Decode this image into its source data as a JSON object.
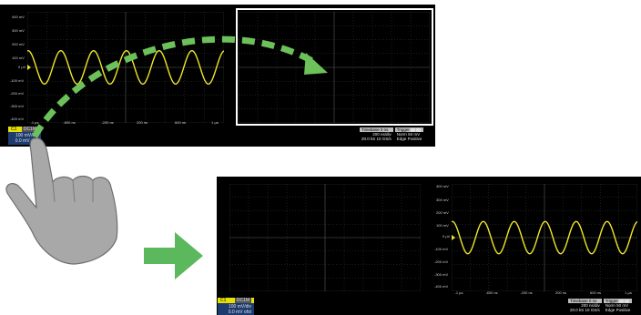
{
  "top_scope": {
    "y_labels": [
      "400 mV",
      "300 mV",
      "200 mV",
      "100 mV",
      "0 µV",
      "-100 mV",
      "-200 mV",
      "-300 mV",
      "-400 mV"
    ],
    "x_labels": [
      "-1 µs",
      "-600 ns",
      "-200 ns",
      "200 ns",
      "600 ns",
      "1 µs"
    ],
    "channel": {
      "name": "C1",
      "badge_box": "DC1M",
      "scale": "100 mV/div",
      "offset": "0.0 mV ofst"
    },
    "timebase": {
      "header": "Timebase",
      "delay": "0 ns",
      "scale": "200 ns/div",
      "samples": "20.0 kS",
      "rate": "10 GS/s"
    },
    "trigger": {
      "header": "Trigger",
      "mode": "Norm",
      "level": "50 mV",
      "type": "Edge",
      "slope": "Positive"
    }
  },
  "bottom_scope": {
    "y_labels": [
      "400 mV",
      "300 mV",
      "200 mV",
      "100 mV",
      "0 µV",
      "-100 mV",
      "-200 mV",
      "-300 mV",
      "-400 mV"
    ],
    "x_labels": [
      "-1 µs",
      "-600 ns",
      "-200 ns",
      "200 ns",
      "600 ns",
      "1 µs"
    ],
    "channel": {
      "name": "C1",
      "badge_box": "DC1M",
      "scale": "100 mV/div",
      "offset": "0.0 mV ofst"
    },
    "timebase": {
      "header": "Timebase",
      "delay": "0 ns",
      "scale": "200 ns/div",
      "samples": "20.0 kS",
      "rate": "10 GS/s"
    },
    "trigger": {
      "header": "Trigger",
      "mode": "Norm",
      "level": "50 mV",
      "type": "Edge",
      "slope": "Positive"
    }
  },
  "waveform": {
    "color": "#f0e62a",
    "amplitude_mV": 120,
    "cycles_visible": 6
  },
  "colors": {
    "grid": "#3a3a3a",
    "arrow_green": "#5cb85c",
    "dash_green": "#6cc15a",
    "hand": "#a8a8a8"
  },
  "icons": {
    "hand": "pointing-hand-icon",
    "arrow": "arrow-right-icon"
  }
}
